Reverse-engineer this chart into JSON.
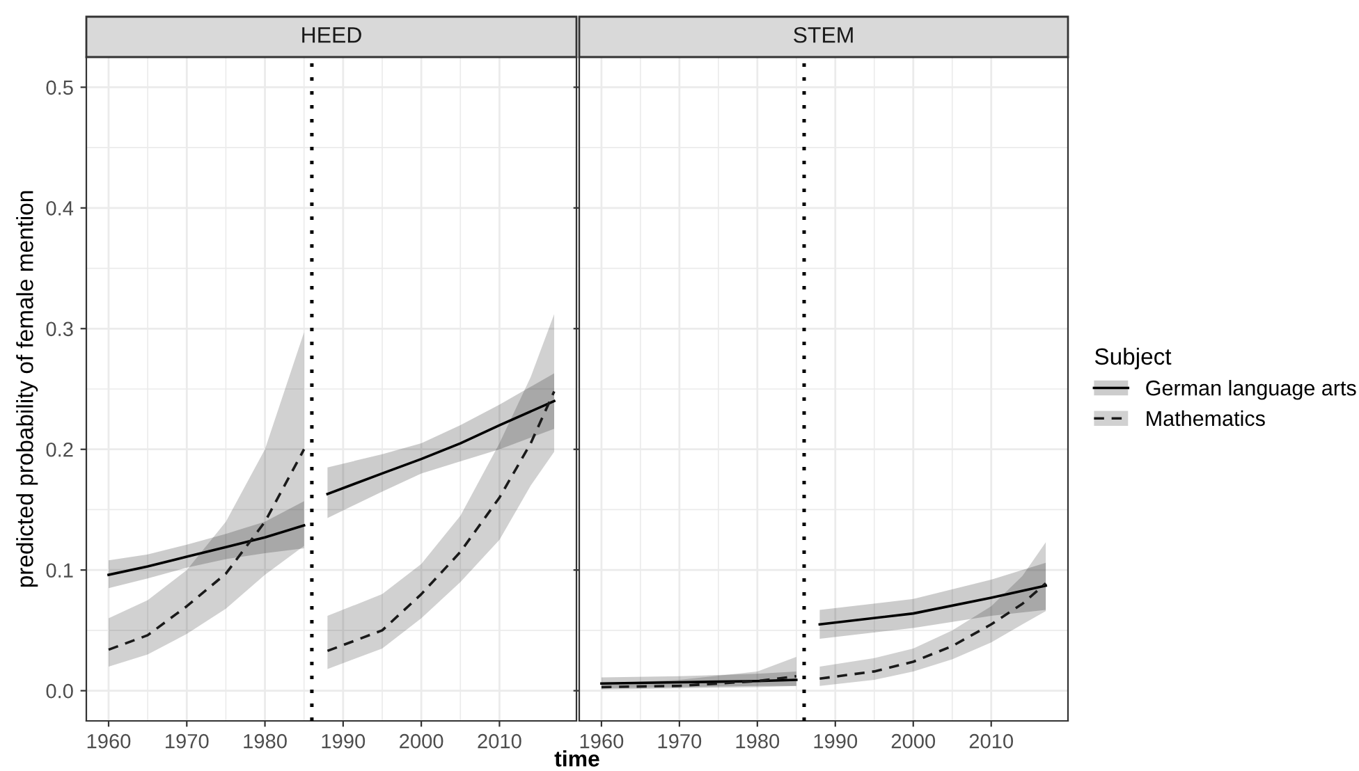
{
  "chart_data": [
    {
      "type": "line",
      "title": "HEED",
      "xlabel": "time",
      "ylabel": "predicted probability of female mention",
      "xlim": [
        1957.15,
        2019.85
      ],
      "xticks": [
        1960,
        1970,
        1980,
        1990,
        2000,
        2010
      ],
      "ylim": [
        -0.025,
        0.525
      ],
      "yticks": [
        {
          "value": 0,
          "label": "0.0"
        },
        0.1,
        0.2,
        0.3,
        0.4,
        0.5
      ],
      "grid": true,
      "legend": "right",
      "legend_title": "Subject",
      "ref_lines": [
        {
          "axis": "x",
          "value": 1986,
          "color": "#000000",
          "line_style": "dotted"
        }
      ],
      "series": [
        {
          "name": "German language arts",
          "color": "#000000",
          "line_style": "solid",
          "x": [
            1960,
            1965,
            1970,
            1975,
            1980,
            1985,
            1986,
            1988,
            1995,
            2000,
            2005,
            2010,
            2017
          ],
          "values": [
            0.096,
            0.103,
            0.111,
            0.119,
            0.127,
            0.137,
            null,
            0.163,
            0.18,
            0.192,
            0.205,
            0.22,
            0.24
          ],
          "lower": [
            0.085,
            0.093,
            0.102,
            0.109,
            0.114,
            0.118,
            null,
            0.143,
            0.165,
            0.18,
            0.19,
            0.2,
            0.217
          ],
          "upper": [
            0.108,
            0.113,
            0.121,
            0.13,
            0.14,
            0.157,
            null,
            0.185,
            0.196,
            0.205,
            0.22,
            0.237,
            0.263
          ]
        },
        {
          "name": "Mathematics",
          "color": "#1a1a1a",
          "line_style": "dashed",
          "x": [
            1960,
            1965,
            1970,
            1975,
            1980,
            1985,
            1986,
            1988,
            1995,
            2000,
            2005,
            2010,
            2014,
            2017
          ],
          "values": [
            0.034,
            0.046,
            0.07,
            0.097,
            0.14,
            0.2,
            null,
            0.033,
            0.05,
            0.08,
            0.115,
            0.16,
            0.205,
            0.248
          ],
          "lower": [
            0.02,
            0.03,
            0.047,
            0.068,
            0.096,
            0.12,
            null,
            0.018,
            0.035,
            0.06,
            0.09,
            0.125,
            0.17,
            0.198
          ],
          "upper": [
            0.06,
            0.075,
            0.1,
            0.14,
            0.2,
            0.297,
            null,
            0.062,
            0.08,
            0.105,
            0.145,
            0.205,
            0.26,
            0.312
          ]
        }
      ]
    },
    {
      "type": "line",
      "title": "STEM",
      "xlim": [
        1957.15,
        2019.85
      ],
      "xticks": [
        1960,
        1970,
        1980,
        1990,
        2000,
        2010
      ],
      "ylim": [
        -0.025,
        0.525
      ],
      "yticks": [
        0,
        0.1,
        0.2,
        0.3,
        0.4,
        0.5
      ],
      "tick_labels": "x",
      "grid": true,
      "legend": "right",
      "ref_lines": [
        {
          "axis": "x",
          "value": 1986,
          "color": "#000000",
          "line_style": "dotted"
        }
      ],
      "series": [
        {
          "name": "German language arts",
          "color": "#000000",
          "line_style": "solid",
          "x": [
            1960,
            1970,
            1980,
            1985,
            1986,
            1988,
            2000,
            2010,
            2017
          ],
          "values": [
            0.006,
            0.007,
            0.008,
            0.009,
            null,
            0.055,
            0.064,
            0.077,
            0.087
          ],
          "lower": [
            0.002,
            0.003,
            0.004,
            0.004,
            null,
            0.043,
            0.052,
            0.062,
            0.067
          ],
          "upper": [
            0.011,
            0.012,
            0.014,
            0.016,
            null,
            0.067,
            0.076,
            0.092,
            0.106
          ]
        },
        {
          "name": "Mathematics",
          "color": "#1a1a1a",
          "line_style": "dashed",
          "x": [
            1960,
            1970,
            1980,
            1985,
            1986,
            1988,
            1995,
            2000,
            2005,
            2010,
            2014,
            2017
          ],
          "values": [
            0.003,
            0.004,
            0.008,
            0.012,
            null,
            0.01,
            0.016,
            0.024,
            0.037,
            0.055,
            0.072,
            0.089
          ],
          "lower": [
            0.001,
            0.002,
            0.003,
            0.004,
            null,
            0.004,
            0.009,
            0.016,
            0.026,
            0.04,
            0.055,
            0.066
          ],
          "upper": [
            0.006,
            0.009,
            0.016,
            0.028,
            null,
            0.02,
            0.027,
            0.035,
            0.05,
            0.07,
            0.095,
            0.123
          ]
        }
      ]
    }
  ]
}
